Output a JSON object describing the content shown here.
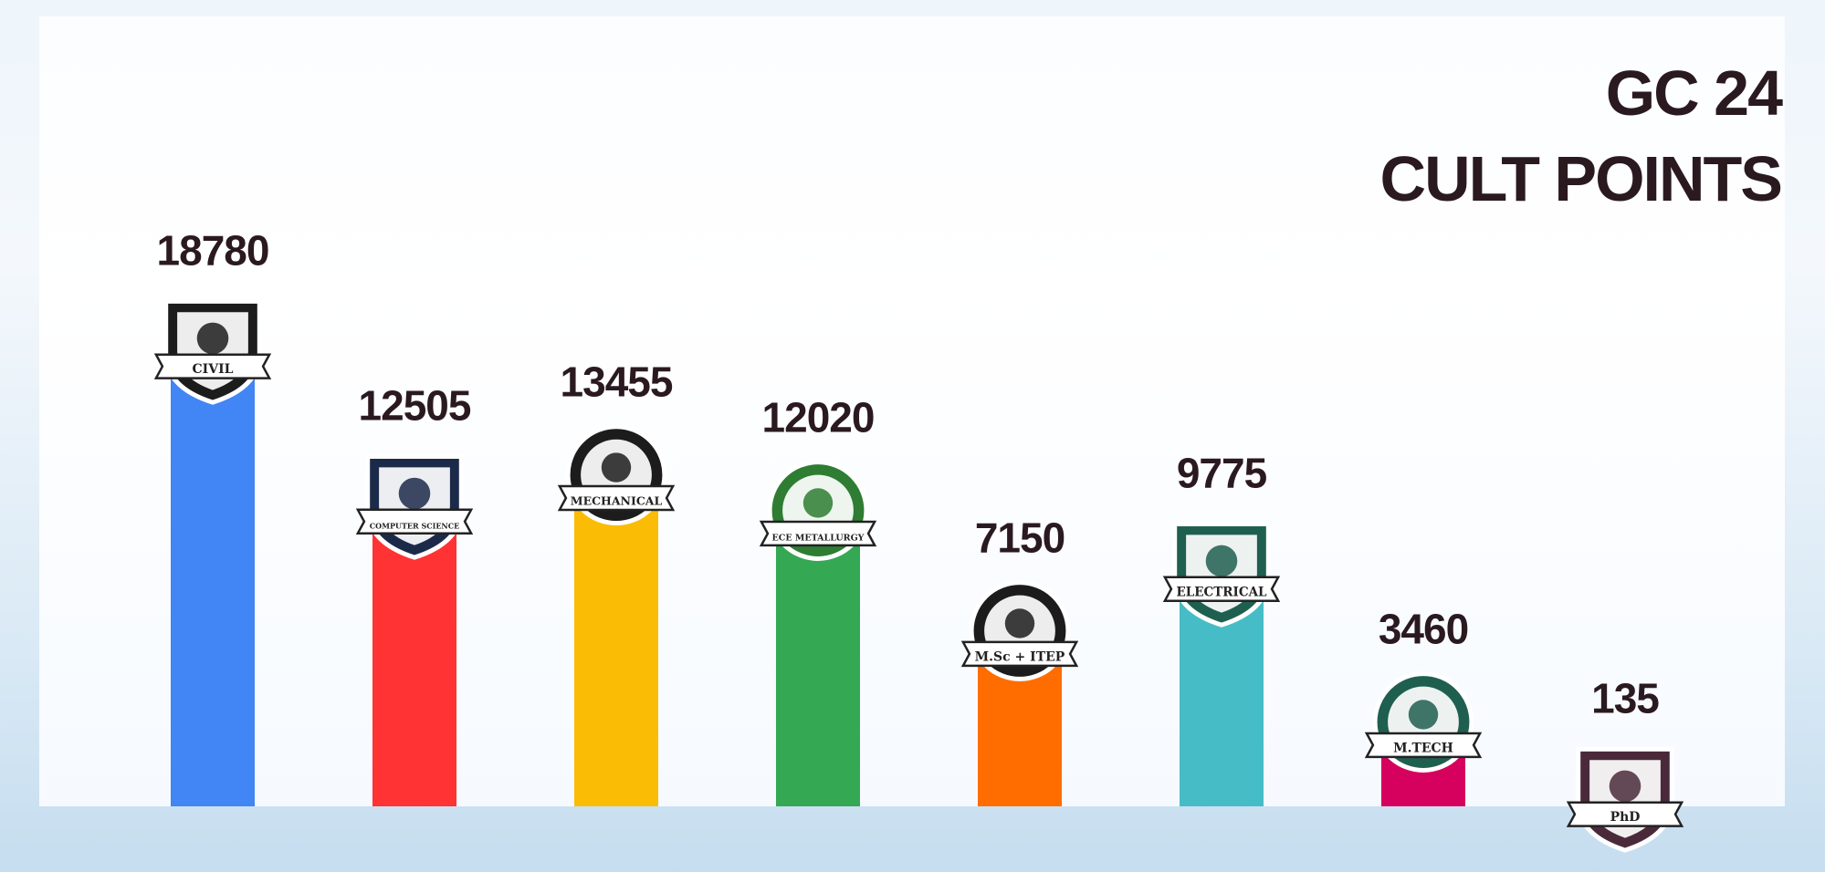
{
  "title": {
    "line1": "GC 24",
    "line2": "CULT POINTS"
  },
  "chart_data": {
    "type": "bar",
    "title": "GC 24 CULT POINTS",
    "categories": [
      "CIVIL",
      "COMPUTER SCIENCE",
      "MECHANICAL",
      "ECE METALLURGY",
      "M.Sc + ITEP",
      "ELECTRICAL",
      "M.TECH",
      "PhD"
    ],
    "values": [
      18780,
      12505,
      13455,
      12020,
      7150,
      9775,
      3460,
      135
    ],
    "colors": [
      "#4285f4",
      "#ff3333",
      "#fbbc05",
      "#34a853",
      "#ff6d01",
      "#46bdc6",
      "#d6005f",
      "#1a5fc2"
    ],
    "badge_colors": [
      "#1c1c1c",
      "#1c2a4a",
      "#1c1c1c",
      "#2e7d32",
      "#1c1c1c",
      "#1f5f50",
      "#1f5f50",
      "#4a2a3a"
    ],
    "legend": "none",
    "grid": false
  }
}
